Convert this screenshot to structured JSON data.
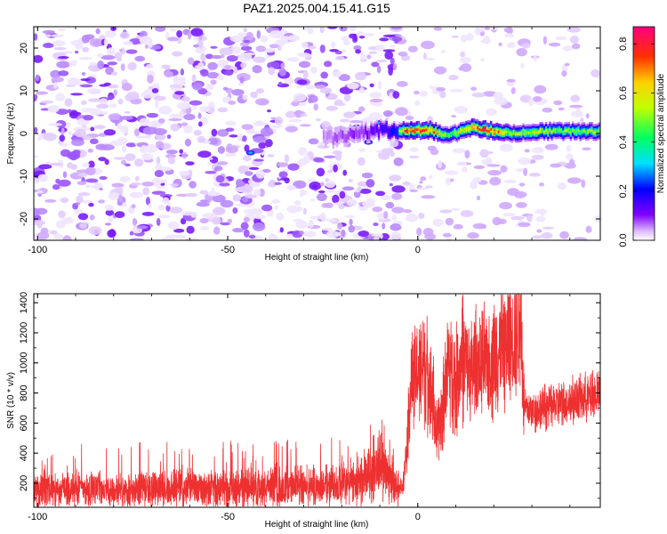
{
  "title": "PAZ1.2025.004.15.41.G15",
  "chart_data": [
    {
      "type": "heatmap",
      "xlabel": "Height of straight line (km)",
      "ylabel": "Frequency (Hz)",
      "xlim": [
        -101,
        48
      ],
      "ylim": [
        -25,
        25
      ],
      "xticks": [
        -100,
        -50,
        0
      ],
      "yticks": [
        -20,
        -10,
        0,
        10,
        20
      ],
      "colorbar": {
        "label": "Normalized spectral amplitude",
        "range": [
          0,
          0.87
        ],
        "ticks": [
          0.0,
          0.2,
          0.4,
          0.6,
          0.8
        ]
      },
      "ridge": {
        "description": "narrow high-amplitude band near 0 Hz for heights above about -6 km",
        "points": [
          {
            "x": -25,
            "y": -1.0,
            "amp": 0.1
          },
          {
            "x": -18,
            "y": -0.5,
            "amp": 0.15
          },
          {
            "x": -12,
            "y": 0.5,
            "amp": 0.2
          },
          {
            "x": -6,
            "y": 1.0,
            "amp": 0.35
          },
          {
            "x": -3,
            "y": 0.6,
            "amp": 0.8
          },
          {
            "x": 3,
            "y": 0.8,
            "amp": 0.75
          },
          {
            "x": 8,
            "y": -0.5,
            "amp": 0.45
          },
          {
            "x": 14,
            "y": 1.5,
            "amp": 0.7
          },
          {
            "x": 18,
            "y": 0.8,
            "amp": 0.8
          },
          {
            "x": 25,
            "y": 0.0,
            "amp": 0.5
          },
          {
            "x": 32,
            "y": 0.5,
            "amp": 0.55
          },
          {
            "x": 40,
            "y": 0.5,
            "amp": 0.5
          },
          {
            "x": 48,
            "y": 0.5,
            "amp": 0.5
          }
        ]
      }
    },
    {
      "type": "line",
      "xlabel": "Height of straight line (km)",
      "ylabel": "SNR (10 * v/v)",
      "xlim": [
        -101,
        48
      ],
      "ylim": [
        40,
        1460
      ],
      "xticks": [
        -100,
        -50,
        0
      ],
      "yticks": [
        200,
        400,
        600,
        800,
        1000,
        1200,
        1400
      ],
      "color": "#ee3030",
      "series": [
        {
          "x": [
            -101,
            -95,
            -90,
            -85,
            -80,
            -75,
            -70,
            -65,
            -60,
            -55,
            -50,
            -45,
            -40,
            -35,
            -30,
            -25,
            -20,
            -15,
            -12,
            -10,
            -8,
            -6,
            -5,
            -4,
            -3,
            -2,
            -1,
            0,
            2,
            4,
            5,
            6,
            8,
            10,
            12,
            14,
            16,
            18,
            20,
            22,
            24,
            26,
            27,
            28,
            30,
            34,
            38,
            42,
            46,
            48
          ],
          "values": [
            160,
            155,
            165,
            160,
            150,
            158,
            162,
            165,
            170,
            168,
            165,
            170,
            172,
            175,
            178,
            185,
            195,
            215,
            280,
            330,
            250,
            180,
            160,
            180,
            420,
            800,
            880,
            950,
            1000,
            780,
            500,
            650,
            1000,
            880,
            1050,
            920,
            1000,
            980,
            1050,
            1080,
            1150,
            1200,
            1350,
            700,
            680,
            710,
            730,
            760,
            780,
            800
          ]
        }
      ]
    }
  ]
}
